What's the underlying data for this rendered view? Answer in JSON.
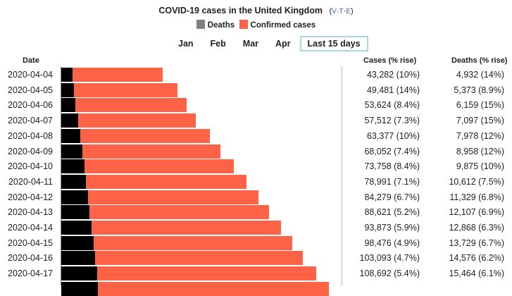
{
  "header": {
    "title": "COVID-19 cases in the United Kingdom",
    "vte": {
      "v": "V",
      "t": "T",
      "e": "E",
      "sep": "·"
    },
    "legend": [
      {
        "label": "Deaths",
        "color": "#808080"
      },
      {
        "label": "Confirmed cases",
        "color": "#ff6347"
      }
    ],
    "tabs": [
      "Jan",
      "Feb",
      "Mar",
      "Apr",
      "Last 15 days"
    ],
    "active_tab": "Last 15 days"
  },
  "columns": {
    "date": "Date",
    "cases": "Cases (% rise)",
    "deaths": "Deaths (% rise)"
  },
  "chart_data": {
    "type": "bar",
    "orientation": "horizontal-stacked",
    "title": "COVID-19 cases in the United Kingdom",
    "bar_colors": {
      "deaths": "#000000",
      "cases": "#ff6347"
    },
    "rows": [
      {
        "date": "2020-04-04",
        "cases": 43282,
        "cases_text": "43,282 (10%)",
        "deaths": 4932,
        "deaths_text": "4,932 (14%)"
      },
      {
        "date": "2020-04-05",
        "cases": 49481,
        "cases_text": "49,481 (14%)",
        "deaths": 5373,
        "deaths_text": "5,373 (8.9%)"
      },
      {
        "date": "2020-04-06",
        "cases": 53624,
        "cases_text": "53,624 (8.4%)",
        "deaths": 6159,
        "deaths_text": "6,159 (15%)"
      },
      {
        "date": "2020-04-07",
        "cases": 57512,
        "cases_text": "57,512 (7.3%)",
        "deaths": 7097,
        "deaths_text": "7,097 (15%)"
      },
      {
        "date": "2020-04-08",
        "cases": 63377,
        "cases_text": "63,377 (10%)",
        "deaths": 7978,
        "deaths_text": "7,978 (12%)"
      },
      {
        "date": "2020-04-09",
        "cases": 68052,
        "cases_text": "68,052 (7.4%)",
        "deaths": 8958,
        "deaths_text": "8,958 (12%)"
      },
      {
        "date": "2020-04-10",
        "cases": 73758,
        "cases_text": "73,758 (8.4%)",
        "deaths": 9875,
        "deaths_text": "9,875 (10%)"
      },
      {
        "date": "2020-04-11",
        "cases": 78991,
        "cases_text": "78,991 (7.1%)",
        "deaths": 10612,
        "deaths_text": "10,612 (7.5%)"
      },
      {
        "date": "2020-04-12",
        "cases": 84279,
        "cases_text": "84,279 (6.7%)",
        "deaths": 11329,
        "deaths_text": "11,329 (6.8%)"
      },
      {
        "date": "2020-04-13",
        "cases": 88621,
        "cases_text": "88,621 (5.2%)",
        "deaths": 12107,
        "deaths_text": "12,107 (6.9%)"
      },
      {
        "date": "2020-04-14",
        "cases": 93873,
        "cases_text": "93,873 (5.9%)",
        "deaths": 12868,
        "deaths_text": "12,868 (6.3%)"
      },
      {
        "date": "2020-04-15",
        "cases": 98476,
        "cases_text": "98,476 (4.9%)",
        "deaths": 13729,
        "deaths_text": "13,729 (6.7%)"
      },
      {
        "date": "2020-04-16",
        "cases": 103093,
        "cases_text": "103,093 (4.7%)",
        "deaths": 14576,
        "deaths_text": "14,576 (6.2%)"
      },
      {
        "date": "2020-04-17",
        "cases": 108692,
        "cases_text": "108,692 (5.4%)",
        "deaths": 15464,
        "deaths_text": "15,464 (6.1%)"
      }
    ],
    "partial_row_bar": {
      "cases": 114200,
      "deaths": 15500
    }
  }
}
